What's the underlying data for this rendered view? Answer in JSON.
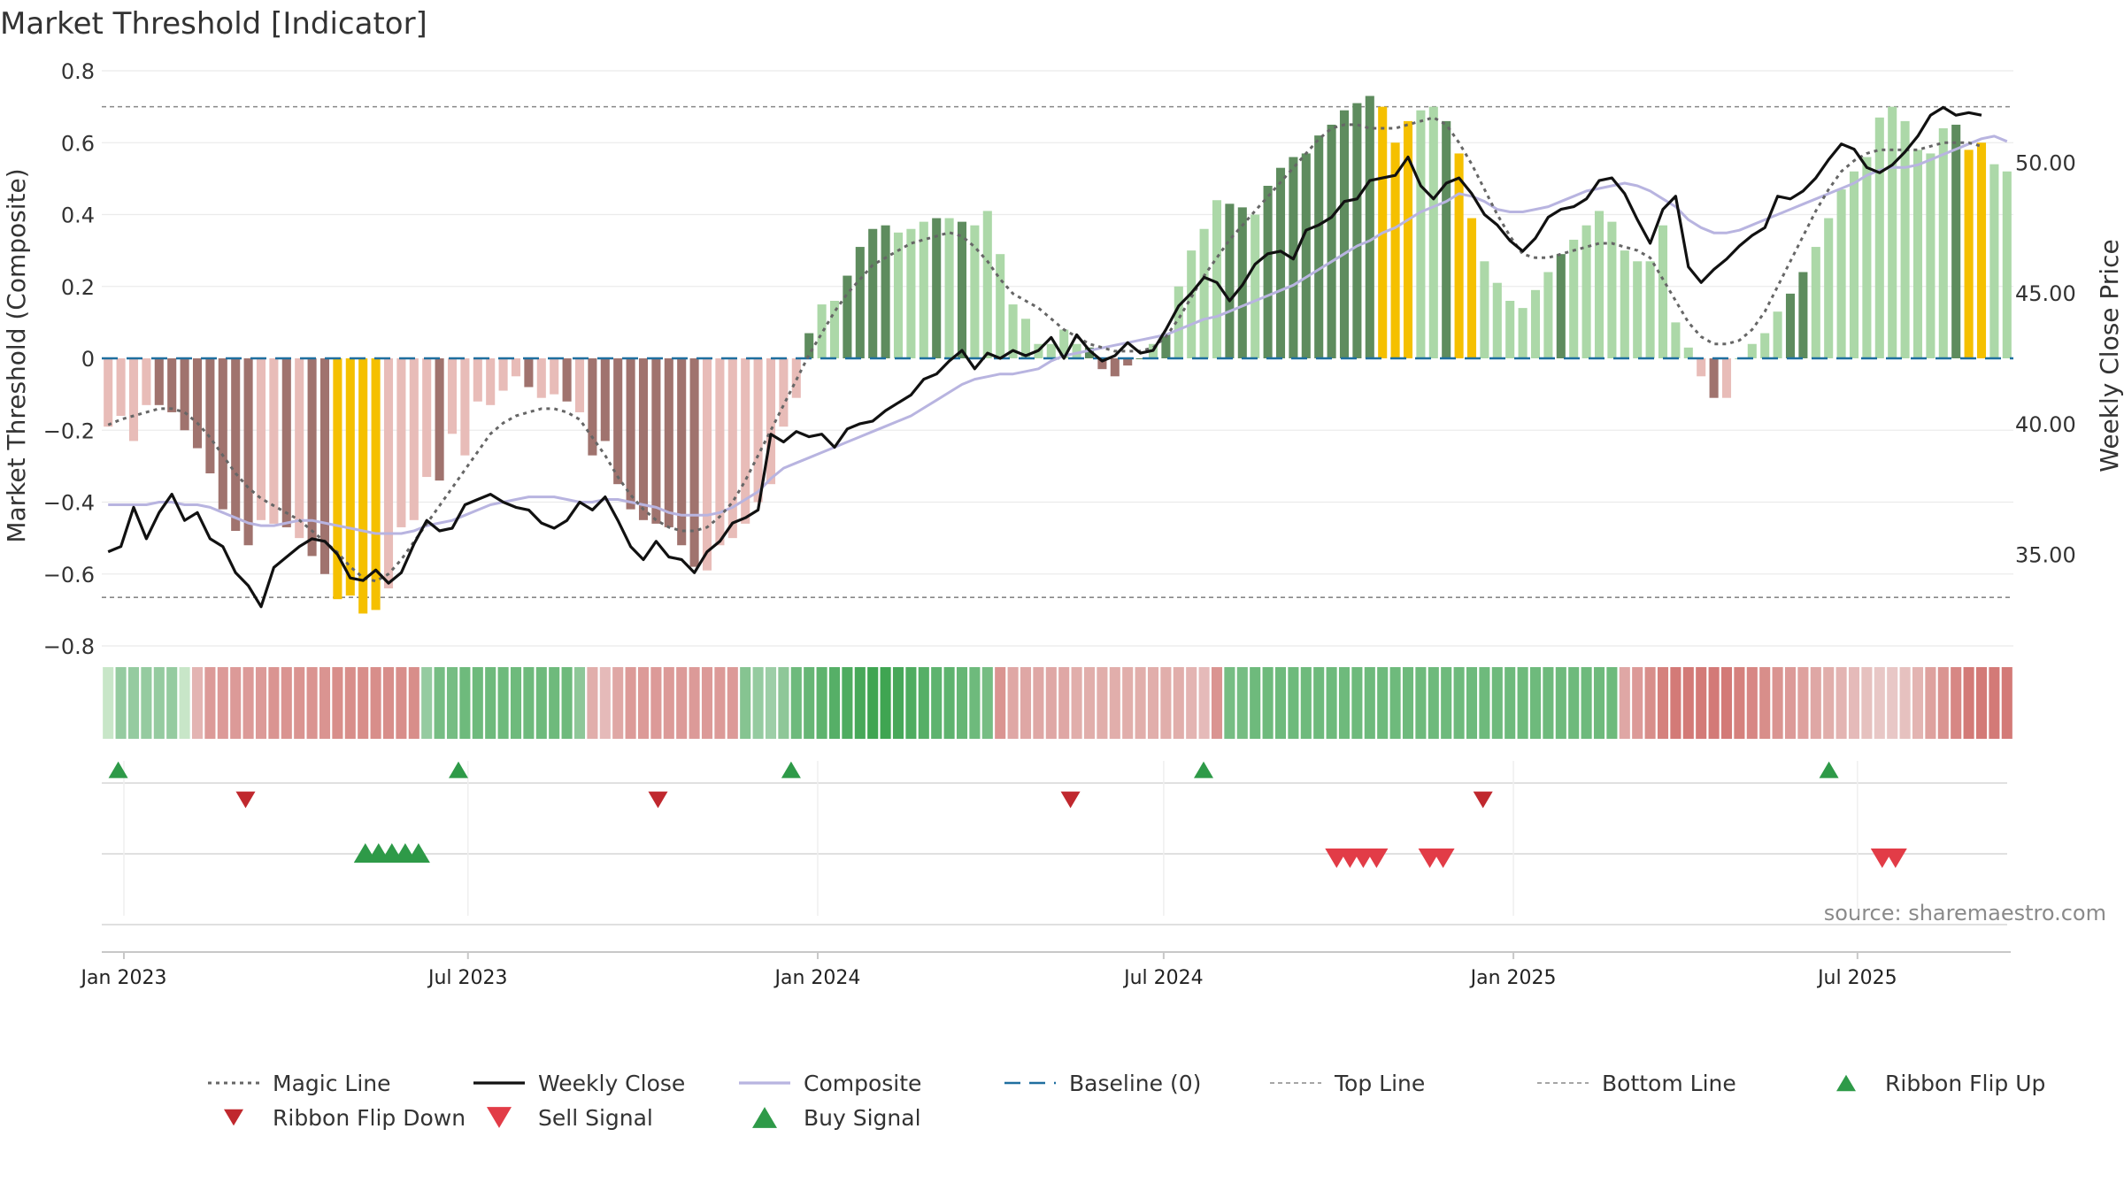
{
  "chart_data": {
    "type": "bar",
    "title": "Market Threshold [Indicator]",
    "ylabel_left": "Market Threshold (Composite)",
    "ylabel_right": "Weekly Close Price",
    "source": "source: sharemaestro.com",
    "ylim_left": [
      -0.8,
      0.8
    ],
    "ylim_right": [
      31.5,
      53.5
    ],
    "yticks_left": [
      {
        "v": 0.8,
        "label": "0.8"
      },
      {
        "v": 0.6,
        "label": "0.6"
      },
      {
        "v": 0.4,
        "label": "0.4"
      },
      {
        "v": 0.2,
        "label": "0.2"
      },
      {
        "v": 0,
        "label": "0"
      },
      {
        "v": -0.2,
        "label": "−0.2"
      },
      {
        "v": -0.4,
        "label": "−0.4"
      },
      {
        "v": -0.6,
        "label": "−0.6"
      },
      {
        "v": -0.8,
        "label": "−0.8"
      }
    ],
    "yticks_right": [
      {
        "v": 50,
        "label": "50.00"
      },
      {
        "v": 45,
        "label": "45.00"
      },
      {
        "v": 40,
        "label": "40.00"
      },
      {
        "v": 35,
        "label": "35.00"
      }
    ],
    "x_start": "2023-01-01",
    "x_end": "2025-09-01",
    "xticks": [
      {
        "date": "2023-01-01",
        "label": "Jan 2023"
      },
      {
        "date": "2023-07-01",
        "label": "Jul 2023"
      },
      {
        "date": "2024-01-01",
        "label": "Jan 2024"
      },
      {
        "date": "2024-07-01",
        "label": "Jul 2024"
      },
      {
        "date": "2025-01-01",
        "label": "Jan 2025"
      },
      {
        "date": "2025-07-01",
        "label": "Jul 2025"
      }
    ],
    "top_line": 0.7,
    "bottom_line": -0.665,
    "baseline": 0,
    "colors": {
      "strong_pos": "#5e8c5e",
      "weak_pos": "#acd8a8",
      "strong_neg": "#a0736e",
      "weak_neg": "#e8bcb8",
      "extreme": "#f5c000",
      "weekly_close": "#111111",
      "composite": "#b8b4e0",
      "magic": "#666666",
      "baseline": "#1f6f9f",
      "threshold_lines": "#888888",
      "buy": "#2e9a48",
      "sell": "#d8363f"
    },
    "composite_bars": [
      -0.19,
      -0.16,
      -0.23,
      -0.13,
      -0.13,
      -0.15,
      -0.2,
      -0.25,
      -0.32,
      -0.42,
      -0.48,
      -0.52,
      -0.45,
      -0.46,
      -0.47,
      -0.5,
      -0.55,
      -0.6,
      -0.67,
      -0.66,
      -0.71,
      -0.7,
      -0.64,
      -0.47,
      -0.45,
      -0.33,
      -0.34,
      -0.21,
      -0.27,
      -0.12,
      -0.13,
      -0.09,
      -0.05,
      -0.08,
      -0.11,
      -0.1,
      -0.12,
      -0.15,
      -0.27,
      -0.23,
      -0.35,
      -0.42,
      -0.45,
      -0.46,
      -0.47,
      -0.52,
      -0.58,
      -0.59,
      -0.52,
      -0.5,
      -0.46,
      -0.4,
      -0.35,
      -0.19,
      -0.11,
      0.07,
      0.15,
      0.16,
      0.23,
      0.31,
      0.36,
      0.37,
      0.35,
      0.36,
      0.38,
      0.39,
      0.39,
      0.38,
      0.37,
      0.41,
      0.29,
      0.15,
      0.11,
      0.04,
      0.04,
      0.08,
      0.04,
      0.03,
      -0.03,
      -0.05,
      -0.02,
      0,
      0.04,
      0.07,
      0.2,
      0.3,
      0.36,
      0.44,
      0.43,
      0.42,
      0.4,
      0.48,
      0.53,
      0.56,
      0.57,
      0.62,
      0.65,
      0.69,
      0.71,
      0.73,
      0.7,
      0.6,
      0.66,
      0.69,
      0.7,
      0.66,
      0.57,
      0.39,
      0.27,
      0.21,
      0.16,
      0.14,
      0.19,
      0.24,
      0.29,
      0.33,
      0.37,
      0.41,
      0.38,
      0.3,
      0.27,
      0.27,
      0.37,
      0.1,
      0.03,
      -0.05,
      -0.11,
      -0.11,
      0,
      0.04,
      0.07,
      0.13,
      0.18,
      0.24,
      0.31,
      0.39,
      0.47,
      0.52,
      0.56,
      0.67,
      0.7,
      0.66,
      0.58,
      0.57,
      0.64,
      0.65,
      0.58,
      0.6,
      0.54,
      0.52
    ],
    "bar_classes": "wwwwsssssssswwswsseeeewwwwswwwwwwswwswssssssssswwwwwwwwswwsssswwwswswwwwwwwwwssssswswwwwsswssssssssseeewwseewwwwwwswwwwwwwwwwwswwwwwsswwwwwwwwwwwseewwwwssw",
    "weekly_close": [
      35.1,
      35.3,
      36.8,
      35.6,
      36.6,
      37.3,
      36.3,
      36.6,
      35.6,
      35.3,
      34.3,
      33.8,
      33.0,
      34.5,
      34.9,
      35.3,
      35.6,
      35.5,
      35.0,
      34.1,
      34.0,
      34.4,
      33.9,
      34.3,
      35.4,
      36.3,
      35.9,
      36.0,
      36.9,
      37.1,
      37.3,
      37.0,
      36.8,
      36.7,
      36.2,
      36.0,
      36.3,
      37.0,
      36.7,
      37.2,
      36.3,
      35.3,
      34.8,
      35.5,
      34.9,
      34.8,
      34.3,
      35.1,
      35.5,
      36.2,
      36.4,
      36.7,
      39.6,
      39.3,
      39.7,
      39.5,
      39.6,
      39.1,
      39.8,
      40.0,
      40.1,
      40.5,
      40.8,
      41.1,
      41.7,
      41.9,
      42.4,
      42.8,
      42.1,
      42.7,
      42.5,
      42.8,
      42.6,
      42.8,
      43.3,
      42.5,
      43.4,
      42.8,
      42.4,
      42.6,
      43.1,
      42.7,
      42.8,
      43.6,
      44.5,
      45.0,
      45.6,
      45.4,
      44.7,
      45.3,
      46.1,
      46.5,
      46.6,
      46.3,
      47.4,
      47.6,
      47.9,
      48.5,
      48.6,
      49.3,
      49.4,
      49.5,
      50.2,
      49.1,
      48.6,
      49.2,
      49.4,
      48.8,
      48.0,
      47.6,
      47.0,
      46.6,
      47.1,
      47.9,
      48.2,
      48.3,
      48.6,
      49.3,
      49.4,
      48.8,
      47.8,
      46.9,
      48.2,
      48.7,
      46.0,
      45.4,
      45.9,
      46.3,
      46.8,
      47.2,
      47.5,
      48.7,
      48.6,
      48.9,
      49.4,
      50.1,
      50.7,
      50.5,
      49.8,
      49.6,
      49.9,
      50.4,
      51.0,
      51.8,
      52.1,
      51.8,
      51.9,
      51.8
    ],
    "composite_line": [
      36.9,
      36.9,
      36.9,
      36.9,
      37.0,
      37.0,
      36.9,
      36.9,
      36.8,
      36.6,
      36.4,
      36.2,
      36.1,
      36.1,
      36.2,
      36.3,
      36.3,
      36.2,
      36.1,
      36.0,
      35.9,
      35.8,
      35.8,
      35.8,
      35.9,
      36.1,
      36.2,
      36.3,
      36.5,
      36.7,
      36.9,
      37.0,
      37.1,
      37.2,
      37.2,
      37.2,
      37.1,
      37.0,
      37.0,
      37.1,
      37.1,
      37.0,
      36.9,
      36.8,
      36.6,
      36.5,
      36.5,
      36.5,
      36.6,
      36.8,
      37.1,
      37.4,
      37.9,
      38.3,
      38.5,
      38.7,
      38.9,
      39.1,
      39.3,
      39.5,
      39.7,
      39.9,
      40.1,
      40.3,
      40.6,
      40.9,
      41.2,
      41.5,
      41.7,
      41.8,
      41.9,
      41.9,
      42.0,
      42.1,
      42.4,
      42.6,
      42.7,
      42.8,
      42.9,
      43.0,
      43.1,
      43.2,
      43.3,
      43.4,
      43.6,
      43.8,
      44.0,
      44.1,
      44.3,
      44.5,
      44.7,
      44.9,
      45.1,
      45.3,
      45.6,
      45.9,
      46.2,
      46.5,
      46.8,
      47.0,
      47.3,
      47.5,
      47.8,
      48.1,
      48.3,
      48.5,
      48.8,
      48.7,
      48.5,
      48.2,
      48.1,
      48.1,
      48.2,
      48.3,
      48.5,
      48.7,
      48.9,
      49.0,
      49.1,
      49.2,
      49.1,
      48.9,
      48.6,
      48.3,
      47.8,
      47.5,
      47.3,
      47.3,
      47.4,
      47.6,
      47.8,
      48.0,
      48.2,
      48.4,
      48.6,
      48.8,
      49.0,
      49.2,
      49.5,
      49.7,
      49.8,
      49.8,
      49.9,
      50.1,
      50.3,
      50.5,
      50.7,
      50.9,
      51.0,
      50.8
    ],
    "magic_line": [
      -0.185,
      -0.17,
      -0.16,
      -0.15,
      -0.14,
      -0.14,
      -0.15,
      -0.18,
      -0.22,
      -0.27,
      -0.32,
      -0.36,
      -0.39,
      -0.41,
      -0.43,
      -0.45,
      -0.48,
      -0.51,
      -0.54,
      -0.58,
      -0.61,
      -0.62,
      -0.6,
      -0.56,
      -0.51,
      -0.46,
      -0.41,
      -0.36,
      -0.31,
      -0.26,
      -0.21,
      -0.18,
      -0.16,
      -0.15,
      -0.14,
      -0.14,
      -0.15,
      -0.17,
      -0.22,
      -0.27,
      -0.33,
      -0.38,
      -0.42,
      -0.45,
      -0.47,
      -0.48,
      -0.48,
      -0.47,
      -0.44,
      -0.4,
      -0.34,
      -0.27,
      -0.2,
      -0.13,
      -0.06,
      0.01,
      0.07,
      0.13,
      0.18,
      0.22,
      0.26,
      0.28,
      0.3,
      0.32,
      0.33,
      0.34,
      0.35,
      0.34,
      0.31,
      0.27,
      0.22,
      0.18,
      0.16,
      0.14,
      0.11,
      0.08,
      0.06,
      0.04,
      0.03,
      0.02,
      0.02,
      0.02,
      0.03,
      0.06,
      0.11,
      0.17,
      0.23,
      0.28,
      0.33,
      0.37,
      0.41,
      0.45,
      0.49,
      0.53,
      0.57,
      0.61,
      0.64,
      0.65,
      0.65,
      0.64,
      0.64,
      0.64,
      0.65,
      0.66,
      0.67,
      0.65,
      0.6,
      0.54,
      0.47,
      0.4,
      0.34,
      0.29,
      0.28,
      0.28,
      0.29,
      0.3,
      0.31,
      0.32,
      0.32,
      0.31,
      0.3,
      0.28,
      0.22,
      0.16,
      0.1,
      0.06,
      0.04,
      0.04,
      0.05,
      0.08,
      0.13,
      0.2,
      0.27,
      0.34,
      0.41,
      0.47,
      0.52,
      0.55,
      0.57,
      0.58,
      0.58,
      0.58,
      0.58,
      0.59,
      0.6,
      0.6,
      0.6,
      0.59
    ],
    "ribbon_classes": "wgggggwrrrrrrrrrrrrrrrrrrgggggggggggggrrrrrrrrrrrrggggggggggggggggggggrrrrrrrrrrrrrrrrrrgggggggggggggggggggggggggggggggrrrrrrrrrrrrrrrrrrrrrrrrrrrrrrrrrrrrrgggggggggggggggggggggggg",
    "ribbon_intensity": [
      0.15,
      0.35,
      0.35,
      0.35,
      0.35,
      0.35,
      0.15,
      0.25,
      0.45,
      0.45,
      0.45,
      0.45,
      0.45,
      0.5,
      0.5,
      0.5,
      0.5,
      0.5,
      0.55,
      0.55,
      0.55,
      0.55,
      0.55,
      0.55,
      0.55,
      0.35,
      0.55,
      0.55,
      0.6,
      0.6,
      0.6,
      0.6,
      0.6,
      0.6,
      0.6,
      0.6,
      0.6,
      0.4,
      0.3,
      0.2,
      0.35,
      0.45,
      0.45,
      0.45,
      0.45,
      0.45,
      0.45,
      0.45,
      0.45,
      0.45,
      0.45,
      0.35,
      0.3,
      0.4,
      0.6,
      0.65,
      0.7,
      0.75,
      0.8,
      0.85,
      0.9,
      0.9,
      0.85,
      0.8,
      0.75,
      0.7,
      0.7,
      0.65,
      0.6,
      0.55,
      0.5,
      0.35,
      0.35,
      0.35,
      0.35,
      0.35,
      0.3,
      0.3,
      0.3,
      0.3,
      0.3,
      0.3,
      0.3,
      0.3,
      0.3,
      0.25,
      0.2,
      0.5,
      0.55,
      0.55,
      0.6,
      0.6,
      0.6,
      0.6,
      0.6,
      0.6,
      0.6,
      0.6,
      0.6,
      0.6,
      0.6,
      0.6,
      0.6,
      0.6,
      0.6,
      0.6,
      0.6,
      0.6,
      0.6,
      0.6,
      0.6,
      0.6,
      0.6,
      0.6,
      0.6,
      0.6,
      0.6,
      0.6,
      0.6,
      0.35,
      0.45,
      0.55,
      0.65,
      0.7,
      0.7,
      0.7,
      0.7,
      0.7,
      0.65,
      0.6,
      0.55,
      0.5,
      0.45,
      0.4,
      0.35,
      0.3,
      0.25,
      0.2,
      0.15,
      0.1,
      0.1,
      0.15,
      0.25,
      0.4,
      0.5,
      0.6,
      0.7,
      0.7,
      0.7,
      0.7,
      0.6,
      0.5,
      0.4,
      0.3
    ],
    "weeks": 150,
    "markers": {
      "ribbon_flip_up": [
        "2022-12-29",
        "2023-06-26",
        "2023-12-18",
        "2024-07-22",
        "2025-06-16"
      ],
      "ribbon_flip_down": [
        "2023-03-06",
        "2023-10-09",
        "2024-05-13",
        "2024-12-16"
      ],
      "sell_signal": [
        "2024-09-30",
        "2024-10-07",
        "2024-10-14",
        "2024-10-21",
        "2024-11-18",
        "2024-11-25",
        "2025-07-14",
        "2025-07-21"
      ],
      "buy_signal": [
        "2023-05-08",
        "2023-05-15",
        "2023-05-22",
        "2023-05-29",
        "2023-06-05"
      ]
    },
    "legend": [
      {
        "label": "Magic Line",
        "kind": "dotted",
        "color": "#666666"
      },
      {
        "label": "Weekly Close",
        "kind": "solid",
        "color": "#111111"
      },
      {
        "label": "Composite",
        "kind": "solid",
        "color": "#b8b4e0"
      },
      {
        "label": "Baseline (0)",
        "kind": "dashed",
        "color": "#1f6f9f"
      },
      {
        "label": "Top Line",
        "kind": "thin-dashed",
        "color": "#888888"
      },
      {
        "label": "Bottom Line",
        "kind": "thin-dashed",
        "color": "#888888"
      },
      {
        "label": "Ribbon Flip Up",
        "kind": "tri-up",
        "color": "#2e9a48"
      },
      {
        "label": "Ribbon Flip Down",
        "kind": "tri-down",
        "color": "#c0282e"
      },
      {
        "label": "Sell Signal",
        "kind": "tri-down-big",
        "color": "#e23c47"
      },
      {
        "label": "Buy Signal",
        "kind": "tri-up-big",
        "color": "#2e9a48"
      }
    ],
    "legend_position": "bottom",
    "grid": true
  }
}
